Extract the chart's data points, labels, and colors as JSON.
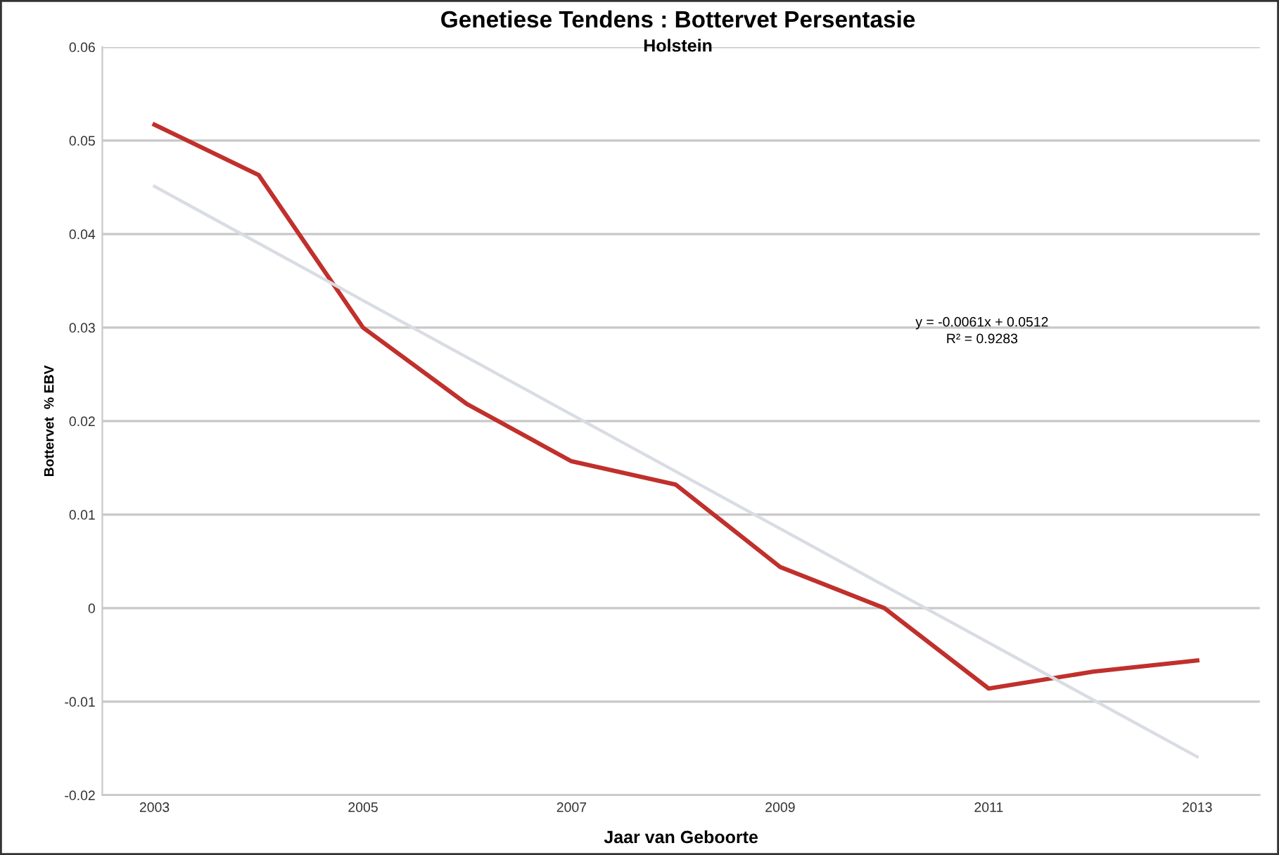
{
  "chart_data": {
    "type": "line",
    "title": "Genetiese Tendens : Bottervet Persentasie",
    "subtitle": "Holstein",
    "xlabel": "Jaar van Geboorte",
    "ylabel": "Bottervet  % EBV",
    "x": [
      2003,
      2004,
      2005,
      2006,
      2007,
      2008,
      2009,
      2010,
      2011,
      2012,
      2013
    ],
    "series": [
      {
        "color": "#c0302c",
        "values": [
          0.0517,
          0.0463,
          0.03,
          0.0218,
          0.0157,
          0.0132,
          0.0044,
          0.0,
          -0.0086,
          -0.0068,
          -0.0056
        ]
      },
      {
        "type": "line",
        "color": "#d9dde3",
        "x": [
          2003,
          2013
        ],
        "values": [
          0.0451,
          -0.0159
        ]
      }
    ],
    "annotations": [
      "y = -0.0061x + 0.0512\nR² = 0.9283"
    ],
    "xlim": [
      2002.5,
      2013.6
    ],
    "xticks": [
      2003,
      2005,
      2007,
      2009,
      2011,
      2013
    ],
    "ylim": [
      -0.02,
      0.06
    ],
    "yticks": [
      -0.02,
      -0.01,
      0,
      0.01,
      0.02,
      0.03,
      0.04,
      0.05,
      0.06
    ],
    "grid": "y",
    "legend": false
  }
}
